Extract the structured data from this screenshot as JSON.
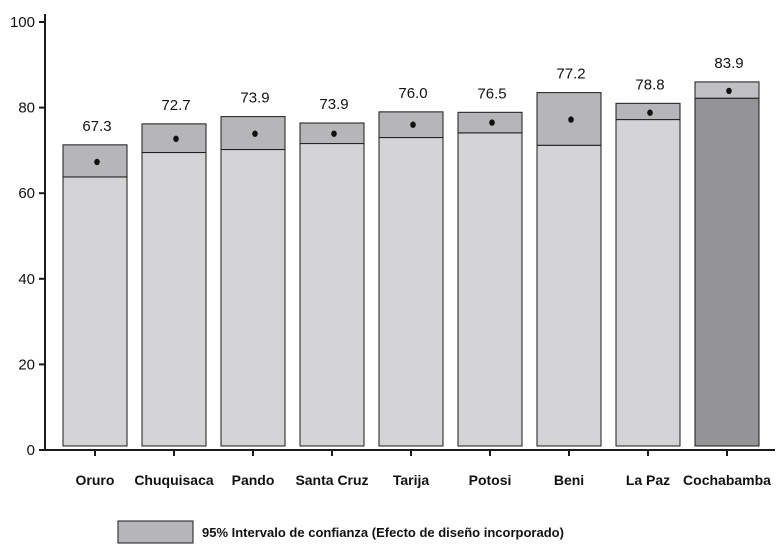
{
  "chart_data": {
    "type": "bar",
    "categories": [
      "Oruro",
      "Chuquisaca",
      "Pando",
      "Santa Cruz",
      "Tarija",
      "Potosi",
      "Beni",
      "La Paz",
      "Cochabamba"
    ],
    "values": [
      67.3,
      72.7,
      73.9,
      73.9,
      76.0,
      76.5,
      77.2,
      78.8,
      83.9
    ],
    "value_labels": [
      "67.3",
      "72.7",
      "73.9",
      "73.9",
      "76.0",
      "76.5",
      "77.2",
      "78.8",
      "83.9"
    ],
    "ci_low": [
      63.8,
      69.5,
      70.2,
      71.6,
      73.0,
      74.1,
      71.2,
      77.2,
      82.2
    ],
    "ci_high": [
      71.3,
      76.2,
      77.9,
      76.4,
      79.0,
      78.9,
      83.5,
      81.0,
      86.0
    ],
    "highlight_index": 8,
    "ylim": [
      0,
      100
    ],
    "yticks": [
      0,
      20,
      40,
      60,
      80,
      100
    ],
    "title": "",
    "xlabel": "",
    "ylabel": "",
    "legend": {
      "label": "95% Intervalo de confianza (Efecto de diseño incorporado)",
      "placement": "bottom"
    },
    "colors": {
      "bar": "#d4d4d6",
      "ci_band": "#b6b6b9",
      "highlight_bar": "#949497",
      "highlight_ci": "#c0c0c3",
      "stroke": "#1a1a1a",
      "point": "#111111"
    }
  }
}
